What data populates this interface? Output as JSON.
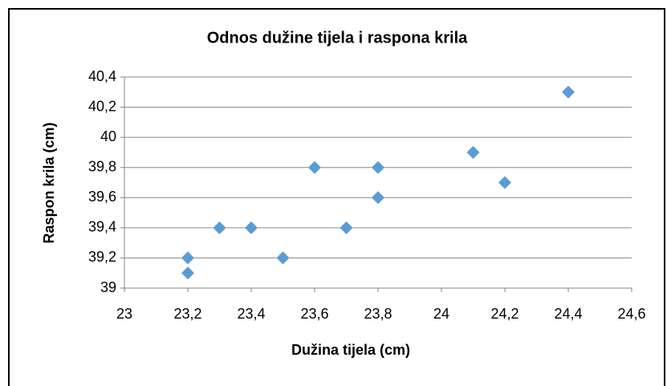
{
  "chart_data": {
    "type": "scatter",
    "title": "Odnos dužine tijela i raspona krila",
    "x_label": "Dužina tijela (cm)",
    "y_label": "Raspon krila (cm)",
    "series": [
      {
        "name": "Raspon krila (cm)",
        "color": "#5b9bd5",
        "x": [
          23.2,
          23.2,
          23.3,
          23.4,
          23.5,
          23.6,
          23.7,
          23.8,
          23.8,
          24.1,
          24.2,
          24.4
        ],
        "values": [
          39.2,
          39.1,
          39.4,
          39.4,
          39.2,
          39.8,
          39.4,
          39.8,
          39.6,
          39.9,
          39.7,
          40.3
        ]
      }
    ],
    "xlim": [
      23,
      24.6
    ],
    "xticks": [
      23,
      {
        "value": 23.2,
        "label": "23,2"
      },
      {
        "value": 23.4,
        "label": "23,4"
      },
      {
        "value": 23.6,
        "label": "23,6"
      },
      {
        "value": 23.8,
        "label": "23,8"
      },
      24,
      {
        "value": 24.2,
        "label": "24,2"
      },
      {
        "value": 24.4,
        "label": "24,4"
      },
      {
        "value": 24.6,
        "label": "24,6"
      }
    ],
    "ylim": [
      39,
      40.4
    ],
    "yticks": [
      39,
      {
        "value": 39.2,
        "label": "39,2"
      },
      {
        "value": 39.4,
        "label": "39,4"
      },
      {
        "value": 39.6,
        "label": "39,6"
      },
      {
        "value": 39.8,
        "label": "39,8"
      },
      40,
      {
        "value": 40.2,
        "label": "40,2"
      },
      {
        "value": 40.4,
        "label": "40,4"
      }
    ],
    "grid": true
  }
}
